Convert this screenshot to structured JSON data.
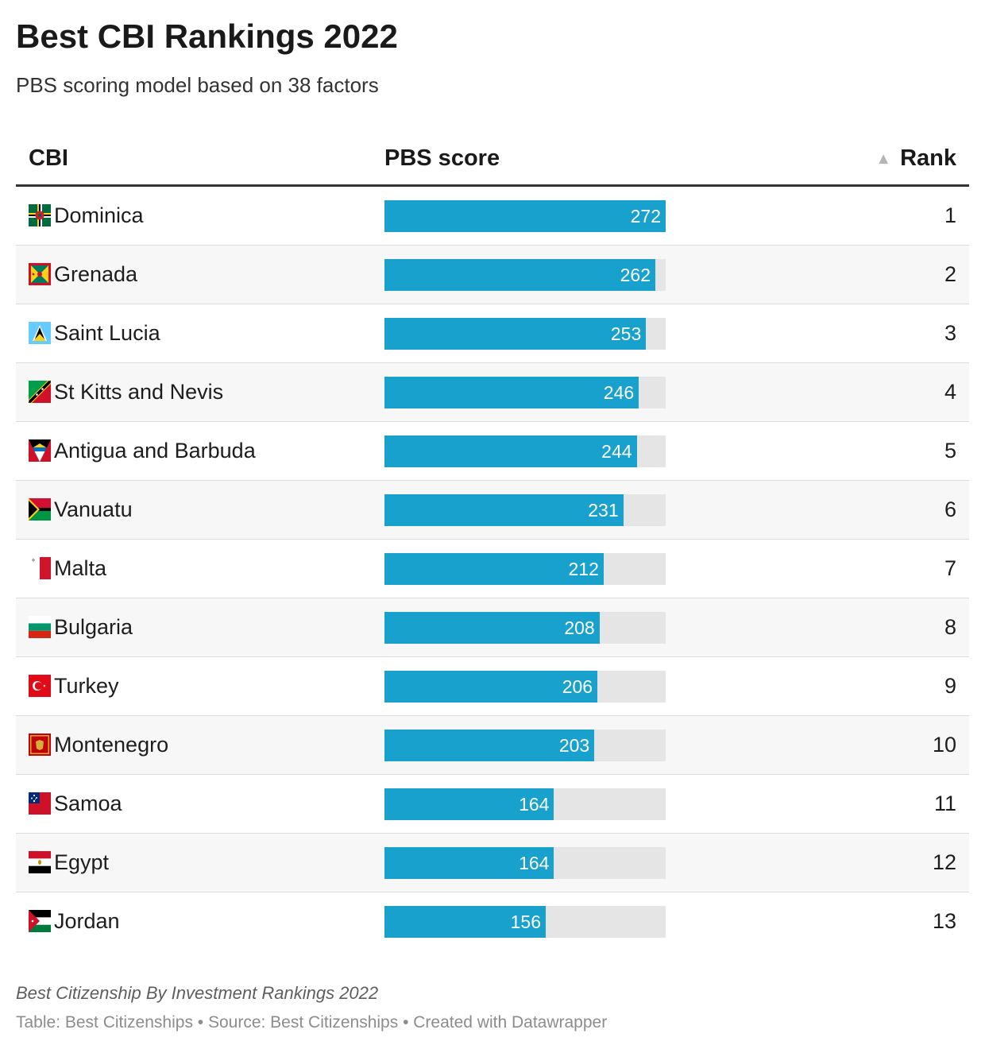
{
  "header": {
    "title": "Best CBI Rankings 2022",
    "subtitle": "PBS scoring model based on 38 factors"
  },
  "table": {
    "columns": {
      "cbi": "CBI",
      "score": "PBS score",
      "rank": "Rank",
      "sort_glyph": "▲"
    }
  },
  "colors": {
    "bar": "#18a1cd",
    "track": "#e5e5e5"
  },
  "chart_data": {
    "type": "table",
    "title": "Best CBI Rankings 2022",
    "subtitle": "PBS scoring model based on 38 factors",
    "columns": [
      "CBI",
      "PBS score",
      "Rank"
    ],
    "score_max": 272,
    "rows": [
      {
        "cbi": "Dominica",
        "flag": "dominica-flag",
        "score": 272,
        "rank": 1
      },
      {
        "cbi": "Grenada",
        "flag": "grenada-flag",
        "score": 262,
        "rank": 2
      },
      {
        "cbi": "Saint Lucia",
        "flag": "saint-lucia-flag",
        "score": 253,
        "rank": 3
      },
      {
        "cbi": "St Kitts and Nevis",
        "flag": "st-kitts-and-nevis-flag",
        "score": 246,
        "rank": 4
      },
      {
        "cbi": "Antigua and Barbuda",
        "flag": "antigua-and-barbuda-flag",
        "score": 244,
        "rank": 5
      },
      {
        "cbi": "Vanuatu",
        "flag": "vanuatu-flag",
        "score": 231,
        "rank": 6
      },
      {
        "cbi": "Malta",
        "flag": "malta-flag",
        "score": 212,
        "rank": 7
      },
      {
        "cbi": "Bulgaria",
        "flag": "bulgaria-flag",
        "score": 208,
        "rank": 8
      },
      {
        "cbi": "Turkey",
        "flag": "turkey-flag",
        "score": 206,
        "rank": 9
      },
      {
        "cbi": "Montenegro",
        "flag": "montenegro-flag",
        "score": 203,
        "rank": 10
      },
      {
        "cbi": "Samoa",
        "flag": "samoa-flag",
        "score": 164,
        "rank": 11
      },
      {
        "cbi": "Egypt",
        "flag": "egypt-flag",
        "score": 164,
        "rank": 12
      },
      {
        "cbi": "Jordan",
        "flag": "jordan-flag",
        "score": 156,
        "rank": 13
      }
    ]
  },
  "footer": {
    "notes": "Best Citizenship By Investment Rankings 2022",
    "credits": "Table: Best Citizenships • Source: Best Citizenships • Created with Datawrapper"
  }
}
